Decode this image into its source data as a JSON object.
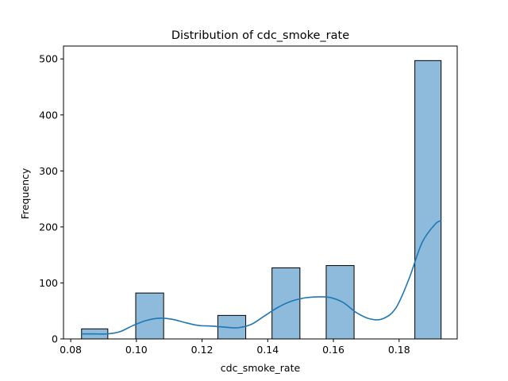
{
  "chart_data": {
    "type": "bar",
    "title": "Distribution of cdc_smoke_rate",
    "xlabel": "cdc_smoke_rate",
    "ylabel": "Frequency",
    "xlim": [
      0.0778,
      0.1977
    ],
    "ylim": [
      0,
      523
    ],
    "xticks": [
      0.08,
      0.1,
      0.12,
      0.14,
      0.16,
      0.18
    ],
    "xtick_labels": [
      "0.08",
      "0.10",
      "0.12",
      "0.14",
      "0.16",
      "0.18"
    ],
    "yticks": [
      0,
      100,
      200,
      300,
      400,
      500
    ],
    "ytick_labels": [
      "0",
      "100",
      "200",
      "300",
      "400",
      "500"
    ],
    "bars": [
      {
        "x0": 0.0833,
        "x1": 0.0913,
        "value": 18
      },
      {
        "x0": 0.0998,
        "x1": 0.1083,
        "value": 82
      },
      {
        "x0": 0.1248,
        "x1": 0.1333,
        "value": 42
      },
      {
        "x0": 0.1413,
        "x1": 0.1498,
        "value": 127
      },
      {
        "x0": 0.1578,
        "x1": 0.1663,
        "value": 131
      },
      {
        "x0": 0.1848,
        "x1": 0.1928,
        "value": 497
      }
    ],
    "kde": {
      "x": [
        0.0833,
        0.087,
        0.091,
        0.095,
        0.099,
        0.103,
        0.107,
        0.111,
        0.115,
        0.119,
        0.123,
        0.127,
        0.131,
        0.135,
        0.139,
        0.143,
        0.147,
        0.151,
        0.155,
        0.159,
        0.163,
        0.167,
        0.171,
        0.175,
        0.179,
        0.183,
        0.187,
        0.191,
        0.1928
      ],
      "y": [
        9,
        9,
        9,
        13,
        24,
        33,
        37,
        35,
        29,
        24,
        23,
        21,
        20,
        26,
        41,
        56,
        67,
        73,
        75,
        74,
        65,
        47,
        36,
        36,
        55,
        107,
        172,
        205,
        211
      ]
    },
    "bar_fill": "#8ebbdc",
    "bar_edge": "#000000",
    "kde_color": "#1f77b4",
    "grid": false,
    "legend": "none"
  }
}
